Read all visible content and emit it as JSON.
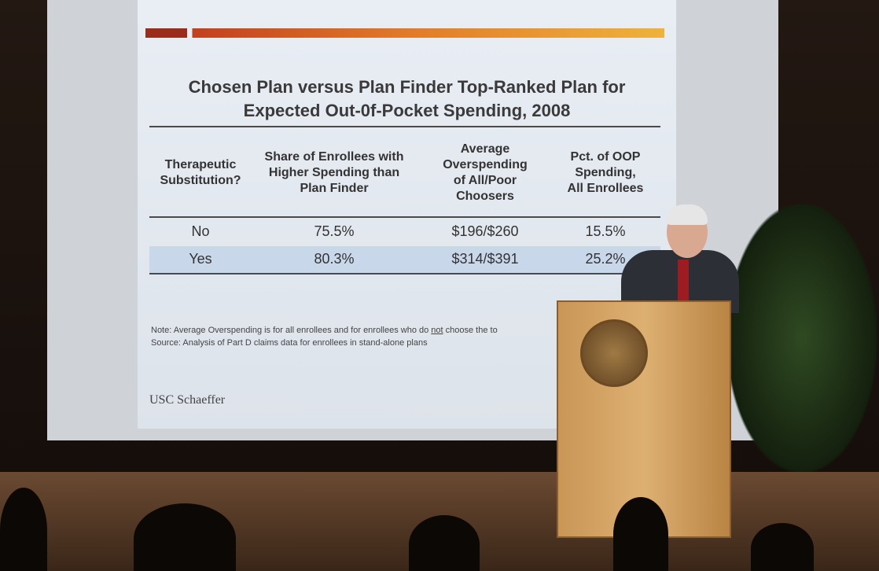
{
  "slide": {
    "title_lines": [
      "Chosen Plan versus Plan Finder Top-Ranked Plan for",
      "Expected Out-0f-Pocket Spending, 2008"
    ],
    "table": {
      "header": [
        [
          "Therapeutic",
          "Substitution?"
        ],
        [
          "Share of Enrollees with",
          "Higher Spending than",
          "Plan Finder"
        ],
        [
          "Average",
          "Overspending",
          "of All/Poor",
          "Choosers"
        ],
        [
          "Pct. of OOP",
          "Spending,",
          "All Enrollees"
        ]
      ],
      "rows": [
        [
          "No",
          "75.5%",
          "$196/$260",
          "15.5%"
        ],
        [
          "Yes",
          "80.3%",
          "$314/$391",
          "25.2%"
        ]
      ]
    },
    "note": {
      "before": "Note:  Average Overspending is for all enrollees and for enrollees who do ",
      "underlined": "not",
      "after": " choose the to"
    },
    "source": "Source:  Analysis of Part D claims data for enrollees in stand-alone plans",
    "logo": "USC Schaeffer"
  }
}
